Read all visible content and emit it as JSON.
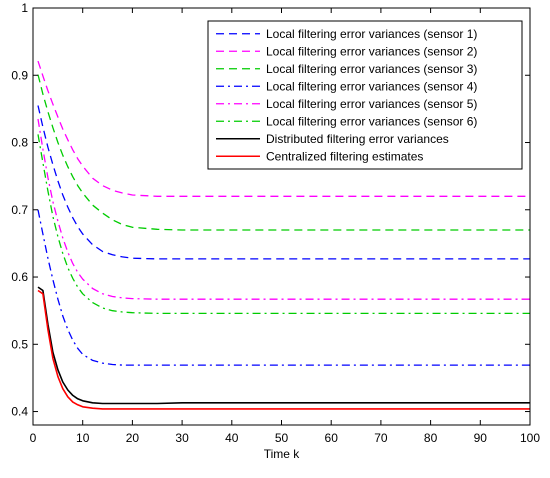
{
  "chart_data": {
    "type": "line",
    "title": "",
    "xlabel": "Time k",
    "ylabel": "",
    "xlim": [
      0,
      100
    ],
    "ylim": [
      0.38,
      1.0
    ],
    "xticks": [
      0,
      10,
      20,
      30,
      40,
      50,
      60,
      70,
      80,
      90,
      100
    ],
    "yticks": [
      0.4,
      0.5,
      0.6,
      0.7,
      0.8,
      0.9,
      1
    ],
    "xtick_labels": [
      "0",
      "10",
      "20",
      "30",
      "40",
      "50",
      "60",
      "70",
      "80",
      "90",
      "100"
    ],
    "ytick_labels": [
      "0.4",
      "0.5",
      "0.6",
      "0.7",
      "0.8",
      "0.9",
      "1"
    ],
    "grid": false,
    "legend_position": "top-right",
    "x": [
      1,
      2,
      3,
      4,
      5,
      6,
      7,
      8,
      9,
      10,
      12,
      14,
      16,
      18,
      20,
      25,
      30,
      40,
      50,
      60,
      70,
      80,
      90,
      100
    ],
    "series": [
      {
        "name": "Local filtering error variances (sensor 1)",
        "color": "#0000ff",
        "dash": "dashed",
        "values": [
          0.855,
          0.823,
          0.793,
          0.767,
          0.743,
          0.722,
          0.704,
          0.688,
          0.675,
          0.664,
          0.648,
          0.638,
          0.633,
          0.63,
          0.628,
          0.627,
          0.627,
          0.627,
          0.627,
          0.627,
          0.627,
          0.627,
          0.627,
          0.627
        ]
      },
      {
        "name": "Local filtering error variances (sensor 2)",
        "color": "#ff00ff",
        "dash": "dashed",
        "values": [
          0.921,
          0.899,
          0.877,
          0.857,
          0.838,
          0.82,
          0.804,
          0.789,
          0.776,
          0.765,
          0.747,
          0.736,
          0.729,
          0.725,
          0.722,
          0.72,
          0.72,
          0.72,
          0.72,
          0.72,
          0.72,
          0.72,
          0.72,
          0.72
        ]
      },
      {
        "name": "Local filtering error variances (sensor 3)",
        "color": "#00cc00",
        "dash": "dashed",
        "values": [
          0.901,
          0.872,
          0.846,
          0.822,
          0.8,
          0.781,
          0.764,
          0.749,
          0.736,
          0.725,
          0.707,
          0.695,
          0.685,
          0.678,
          0.674,
          0.671,
          0.67,
          0.67,
          0.67,
          0.67,
          0.67,
          0.67,
          0.67,
          0.67
        ]
      },
      {
        "name": "Local filtering error variances (sensor 4)",
        "color": "#0000ff",
        "dash": "dashdot",
        "values": [
          0.7,
          0.664,
          0.628,
          0.596,
          0.567,
          0.542,
          0.522,
          0.506,
          0.494,
          0.485,
          0.476,
          0.472,
          0.47,
          0.469,
          0.469,
          0.469,
          0.469,
          0.469,
          0.469,
          0.469,
          0.469,
          0.469,
          0.469,
          0.469
        ]
      },
      {
        "name": "Local filtering error variances (sensor 5)",
        "color": "#ff00ff",
        "dash": "dashdot",
        "values": [
          0.835,
          0.79,
          0.748,
          0.712,
          0.683,
          0.658,
          0.637,
          0.62,
          0.607,
          0.597,
          0.583,
          0.575,
          0.571,
          0.569,
          0.568,
          0.567,
          0.567,
          0.567,
          0.567,
          0.567,
          0.567,
          0.567,
          0.567,
          0.567
        ]
      },
      {
        "name": "Local filtering error variances (sensor 6)",
        "color": "#00cc00",
        "dash": "dashdot",
        "values": [
          0.812,
          0.77,
          0.728,
          0.69,
          0.66,
          0.635,
          0.614,
          0.598,
          0.585,
          0.575,
          0.562,
          0.554,
          0.55,
          0.548,
          0.547,
          0.546,
          0.546,
          0.546,
          0.546,
          0.546,
          0.546,
          0.546,
          0.546,
          0.546
        ]
      },
      {
        "name": "Distributed filtering error variances",
        "color": "#000000",
        "dash": "solid",
        "values": [
          0.585,
          0.58,
          0.53,
          0.488,
          0.462,
          0.444,
          0.432,
          0.424,
          0.419,
          0.416,
          0.413,
          0.412,
          0.412,
          0.412,
          0.412,
          0.412,
          0.413,
          0.413,
          0.413,
          0.413,
          0.413,
          0.413,
          0.413,
          0.413
        ]
      },
      {
        "name": "Centralized filtering estimates",
        "color": "#ff0000",
        "dash": "solid",
        "values": [
          0.58,
          0.575,
          0.522,
          0.479,
          0.452,
          0.434,
          0.422,
          0.414,
          0.41,
          0.407,
          0.405,
          0.404,
          0.404,
          0.404,
          0.404,
          0.404,
          0.404,
          0.404,
          0.404,
          0.404,
          0.404,
          0.404,
          0.404,
          0.404
        ]
      }
    ]
  }
}
